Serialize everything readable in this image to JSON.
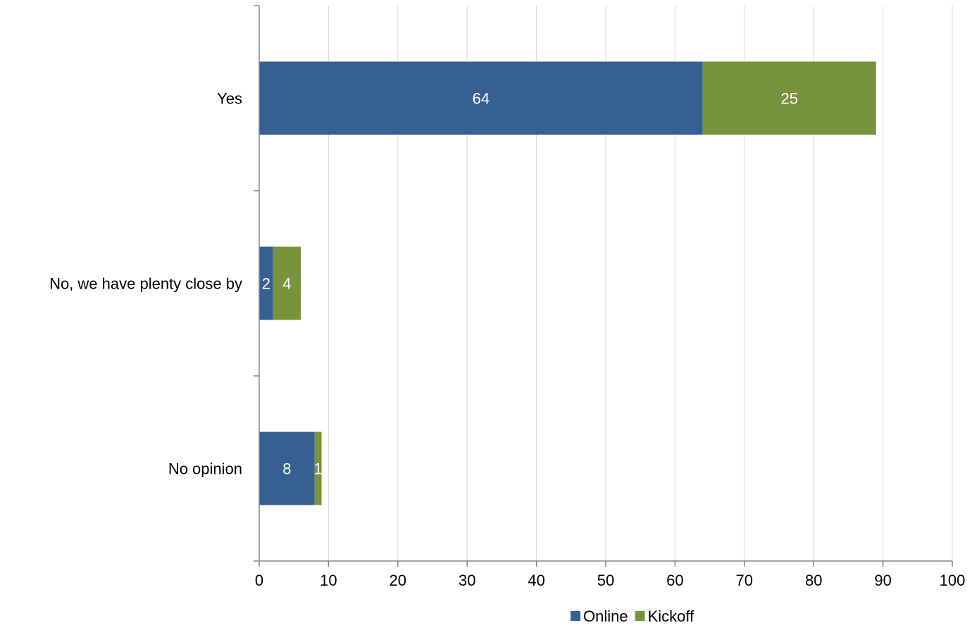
{
  "chart_data": {
    "type": "bar",
    "orientation": "horizontal",
    "stacked": true,
    "categories": [
      "Yes",
      "No, we have plenty close by",
      "No opinion"
    ],
    "series": [
      {
        "name": "Online",
        "values": [
          64,
          2,
          8
        ],
        "color": "#376092"
      },
      {
        "name": "Kickoff",
        "values": [
          25,
          4,
          1
        ],
        "color": "#77933C"
      }
    ],
    "xlim": [
      0,
      100
    ],
    "xticks": [
      0,
      10,
      20,
      30,
      40,
      50,
      60,
      70,
      80,
      90,
      100
    ],
    "grid": "vertical",
    "legend": "bottom-center",
    "title": "",
    "xlabel": "",
    "ylabel": ""
  }
}
